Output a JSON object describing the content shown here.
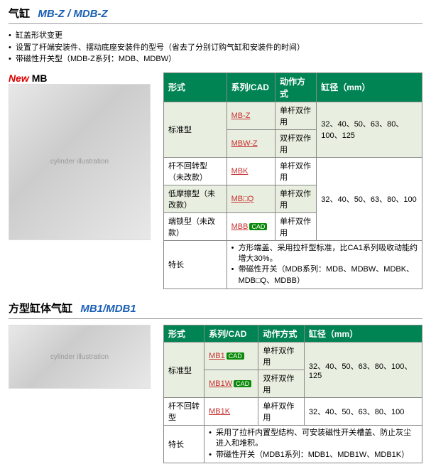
{
  "section1": {
    "title_main": "气缸",
    "title_model": "MB-Z / MDB-Z",
    "title_model_color": "#1a5fb4",
    "bullets": [
      "缸盖形状变更",
      "设置了杆端安装件、摆动底座安装件的型号（省去了分别订购气缸和安装件的时间）",
      "带磁性开关型（MDB-Z系列：MDB、MDBW）"
    ],
    "new_label": "New",
    "new_sub": "MB",
    "table": {
      "headers": [
        "形式",
        "系列/CAD",
        "动作方式",
        "缸径（mm）"
      ],
      "rows": [
        {
          "form": "标准型",
          "series": "MB-Z",
          "cad": false,
          "action": "单杆双作用",
          "bore": "32、40、50、63、80、100、125",
          "form_rowspan": 2,
          "bore_rowspan": 2,
          "shade": true
        },
        {
          "series": "MBW-Z",
          "cad": false,
          "action": "双杆双作用",
          "shade": true
        },
        {
          "form": "杆不回转型（未改款）",
          "series": "MBK",
          "cad": false,
          "action": "单杆双作用",
          "bore": "32、40、50、63、80、100",
          "bore_rowspan": 3,
          "shade": false
        },
        {
          "form": "低摩擦型（未改款）",
          "series": "MB□Q",
          "cad": false,
          "action": "单杆双作用",
          "shade": true
        },
        {
          "form": "端锁型（未改款）",
          "series": "MBB",
          "cad": true,
          "action": "单杆双作用",
          "shade": false
        }
      ],
      "feature_label": "特长",
      "features": [
        "方形端盖、采用拉杆型标准，比CA1系列吸收动能约增大30%。",
        "带磁性开关（MDB系列：MDB、MDBW、MDBK、MDB□Q、MDBB）"
      ]
    }
  },
  "section2": {
    "title_main": "方型缸体气缸",
    "title_model": "MB1/MDB1",
    "title_model_color": "#1a5fb4",
    "table": {
      "headers": [
        "形式",
        "系列/CAD",
        "动作方式",
        "缸径（mm）"
      ],
      "rows": [
        {
          "form": "标准型",
          "series": "MB1",
          "cad": true,
          "action": "单杆双作用",
          "bore": "32、40、50、63、80、100、125",
          "form_rowspan": 2,
          "bore_rowspan": 2,
          "shade": true
        },
        {
          "series": "MB1W",
          "cad": true,
          "action": "双杆双作用",
          "shade": true
        },
        {
          "form": "杆不回转型",
          "series": "MB1K",
          "cad": false,
          "action": "单杆双作用",
          "bore": "32、40、50、63、80、100",
          "shade": false
        }
      ],
      "feature_label": "特长",
      "features": [
        "采用了拉杆内置型结构、可安装磁性开关槽盖、防止灰尘进入和堆积。",
        "带磁性开关（MDB1系列：MDB1、MDB1W、MDB1K）"
      ]
    }
  },
  "cad_label": "CAD"
}
